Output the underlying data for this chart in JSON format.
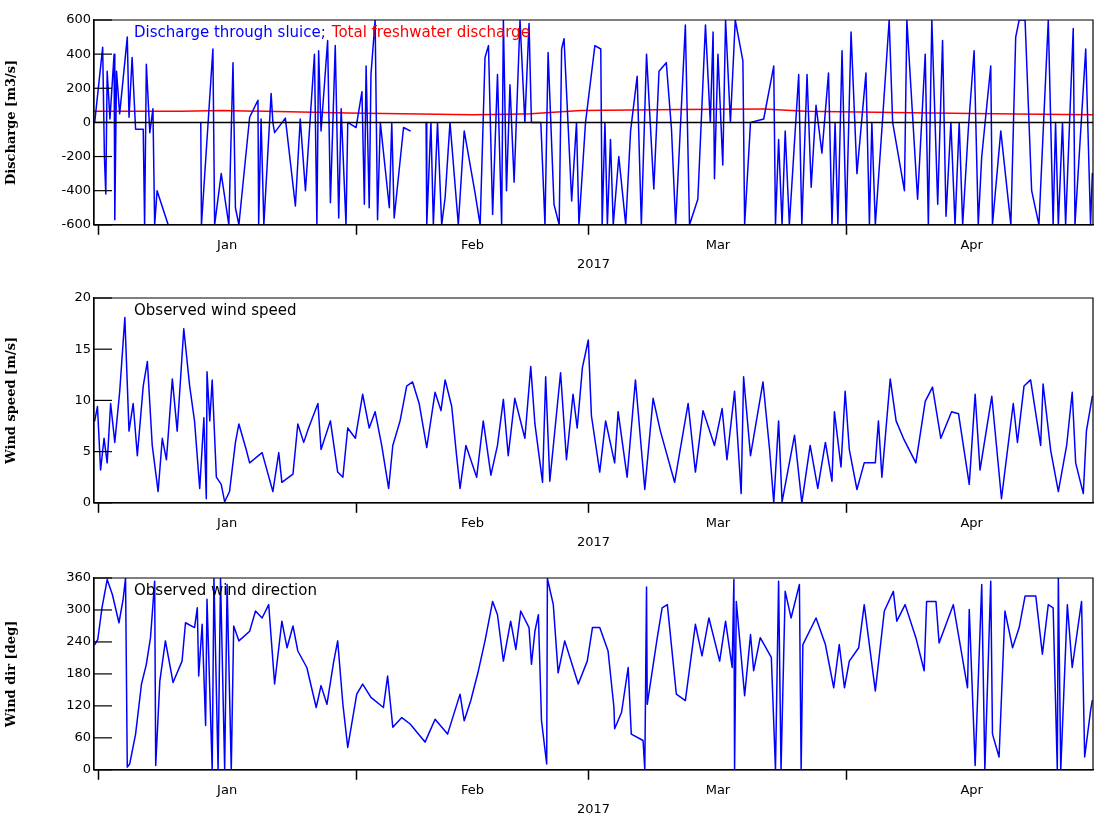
{
  "chart_data": [
    {
      "type": "line",
      "ylabel": "Discharge [m3/s]",
      "xlabel": "2017",
      "legend": "top left",
      "marker": "none",
      "xlim": [
        "2016-12-31T12:00",
        "2017-04-30T14:00"
      ],
      "xticks": [
        {
          "value": "2017-01-01",
          "label": null
        },
        {
          "value": "2017-01-16T12:00",
          "label": "Jan"
        },
        {
          "value": "2017-02-01",
          "label": null
        },
        {
          "value": "2017-02-15",
          "label": "Feb"
        },
        {
          "value": "2017-03-01",
          "label": null
        },
        {
          "value": "2017-03-16T12:00",
          "label": "Mar"
        },
        {
          "value": "2017-04-01",
          "label": null
        },
        {
          "value": "2017-04-16",
          "label": "Apr"
        }
      ],
      "ylim": [
        -600,
        600
      ],
      "yticks": [
        -600,
        -400,
        -200,
        0,
        200,
        400,
        600
      ],
      "ref_lines": [
        {
          "axis": "y",
          "value": 0,
          "color": "#000000"
        }
      ],
      "series": [
        {
          "name": "Discharge through sluice;",
          "color": "#0000ff",
          "x": [
            "2016-12-31T14:00",
            "2017-01-01T13:00",
            "2017-01-01T18:00",
            "2017-01-01T22:00",
            "2017-01-02T02:00",
            "2017-01-02T10:00",
            "2017-01-02T22:00",
            "2017-01-03T00:00",
            "2017-01-03T05:00",
            "2017-01-03T14:00",
            "2017-01-04T12:00",
            "2017-01-04T17:00",
            "2017-01-05T02:00",
            "2017-01-05T12:00",
            "2017-01-06T10:00",
            "2017-01-06T14:00",
            "2017-01-06T19:00",
            "2017-01-07T05:00",
            "2017-01-07T14:00",
            "2017-01-07T19:00",
            "2017-01-08T02:00",
            "2017-01-09T10:00",
            "2017-01-10T12:00",
            "2017-01-13T08:00",
            "2017-01-13T10:00",
            "2017-01-14T19:00",
            "2017-01-15T00:00",
            "2017-01-15T19:00",
            "2017-01-16T17:00",
            "2017-01-17T05:00",
            "2017-01-17T12:00",
            "2017-01-17T22:00",
            "2017-01-19T05:00",
            "2017-01-20T05:00",
            "2017-01-20T07:00",
            "2017-01-20T14:00",
            "2017-01-20T22:00",
            "2017-01-21T19:00",
            "2017-01-22T00:00",
            "2017-01-22T05:00",
            "2017-01-23T12:00",
            "2017-01-24T17:00",
            "2017-01-25T07:00",
            "2017-01-25T22:00",
            "2017-01-26T12:00",
            "2017-01-27T00:00",
            "2017-01-27T07:00",
            "2017-01-27T12:00",
            "2017-01-27T19:00",
            "2017-01-28T14:00",
            "2017-01-28T22:00",
            "2017-01-29T12:00",
            "2017-01-29T22:00",
            "2017-01-30T05:00",
            "2017-01-30T19:00",
            "2017-01-31T00:00",
            "2017-02-01T00:00",
            "2017-02-01T17:00",
            "2017-02-02T00:00",
            "2017-02-02T05:00",
            "2017-02-02T14:00",
            "2017-02-02T19:00",
            "2017-02-03T07:00",
            "2017-02-03T14:00",
            "2017-02-03T22:00",
            "2017-02-05T00:00",
            "2017-02-05T07:00",
            "2017-02-05T14:00",
            "2017-02-06T17:00",
            "2017-02-07T12:00",
            "2017-02-08T12:00",
            "2017-02-09T10:00",
            "2017-02-09T12:00",
            "2017-02-10T00:00",
            "2017-02-10T07:00",
            "2017-02-10T19:00",
            "2017-02-11T07:00",
            "2017-02-11T17:00",
            "2017-02-12T07:00",
            "2017-02-13T07:00",
            "2017-02-14T00:00",
            "2017-02-15T07:00",
            "2017-02-15T22:00",
            "2017-02-16T12:00",
            "2017-02-16T22:00",
            "2017-02-17T10:00",
            "2017-02-18T00:00",
            "2017-02-18T12:00",
            "2017-02-18T17:00",
            "2017-02-19T02:00",
            "2017-02-19T12:00",
            "2017-02-20T00:00",
            "2017-02-20T17:00",
            "2017-02-21T07:00",
            "2017-02-21T19:00",
            "2017-02-22T02:00",
            "2017-02-23T05:00",
            "2017-02-23T17:00",
            "2017-02-24T02:00",
            "2017-02-24T19:00",
            "2017-02-25T10:00",
            "2017-02-25T17:00",
            "2017-02-26T00:00",
            "2017-02-26T22:00",
            "2017-02-27T12:00",
            "2017-02-27T19:00",
            "2017-02-28T14:00",
            "2017-03-01T17:00",
            "2017-03-02T10:00",
            "2017-03-02T14:00",
            "2017-03-02T22:00",
            "2017-03-03T05:00",
            "2017-03-03T14:00",
            "2017-03-03T22:00",
            "2017-03-04T14:00",
            "2017-03-05T10:00",
            "2017-03-06T00:00",
            "2017-03-06T19:00",
            "2017-03-07T07:00",
            "2017-03-07T22:00",
            "2017-03-08T19:00",
            "2017-03-09T10:00",
            "2017-03-10T07:00",
            "2017-03-10T22:00",
            "2017-03-11T10:00",
            "2017-03-12T14:00",
            "2017-03-13T02:00",
            "2017-03-14T02:00",
            "2017-03-15T00:00",
            "2017-03-15T14:00",
            "2017-03-15T22:00",
            "2017-03-16T02:00",
            "2017-03-16T12:00",
            "2017-03-17T02:00",
            "2017-03-17T10:00",
            "2017-03-18T00:00",
            "2017-03-18T14:00",
            "2017-03-19T12:00",
            "2017-03-19T17:00",
            "2017-03-20T10:00",
            "2017-03-22T00:00",
            "2017-03-23T05:00",
            "2017-03-23T10:00",
            "2017-03-23T19:00",
            "2017-03-24T05:00",
            "2017-03-24T14:00",
            "2017-03-25T02:00",
            "2017-03-26T05:00",
            "2017-03-26T14:00",
            "2017-03-27T05:00",
            "2017-03-27T17:00",
            "2017-03-28T07:00",
            "2017-03-29T00:00",
            "2017-03-29T19:00",
            "2017-03-30T05:00",
            "2017-03-30T14:00",
            "2017-03-30T22:00",
            "2017-03-31T10:00",
            "2017-03-31T22:00",
            "2017-04-01T12:00",
            "2017-04-02T05:00",
            "2017-04-03T07:00",
            "2017-04-03T17:00",
            "2017-04-04T00:00",
            "2017-04-04T10:00",
            "2017-04-05T07:00",
            "2017-04-06T02:00",
            "2017-04-06T12:00",
            "2017-04-07T22:00",
            "2017-04-08T05:00",
            "2017-04-09T12:00",
            "2017-04-10T10:00",
            "2017-04-10T19:00",
            "2017-04-11T05:00",
            "2017-04-11T22:00",
            "2017-04-12T12:00",
            "2017-04-12T22:00",
            "2017-04-13T12:00",
            "2017-04-14T00:00",
            "2017-04-14T12:00",
            "2017-04-14T22:00",
            "2017-04-15T14:00",
            "2017-04-16T07:00",
            "2017-04-16T19:00",
            "2017-04-17T05:00",
            "2017-04-18T07:00",
            "2017-04-18T12:00",
            "2017-04-19T12:00",
            "2017-04-20T17:00",
            "2017-04-21T07:00",
            "2017-04-21T17:00",
            "2017-04-22T10:00",
            "2017-04-23T05:00",
            "2017-04-24T02:00",
            "2017-04-25T05:00",
            "2017-04-25T19:00",
            "2017-04-26T02:00",
            "2017-04-26T10:00",
            "2017-04-26T22:00",
            "2017-04-27T07:00",
            "2017-04-28T05:00",
            "2017-04-28T10:00",
            "2017-04-29T17:00",
            "2017-04-30T07:00",
            "2017-04-30T12:00"
          ],
          "values": [
            0,
            440,
            -200,
            -420,
            300,
            20,
            400,
            -570,
            300,
            50,
            500,
            30,
            380,
            -40,
            -40,
            -600,
            340,
            -60,
            80,
            -600,
            -400,
            -600,
            null,
            0,
            -600,
            430,
            -600,
            -300,
            -600,
            350,
            -500,
            -600,
            30,
            130,
            -600,
            20,
            -600,
            170,
            0,
            -60,
            25,
            -490,
            20,
            -400,
            30,
            400,
            -600,
            420,
            -50,
            480,
            -470,
            450,
            -560,
            80,
            -600,
            0,
            -30,
            180,
            -480,
            330,
            -500,
            280,
            600,
            -570,
            0,
            -500,
            0,
            -560,
            -30,
            -50,
            null,
            0,
            -600,
            0,
            -600,
            0,
            -600,
            -440,
            0,
            -600,
            -50,
            -410,
            -600,
            380,
            450,
            -540,
            280,
            -600,
            600,
            -400,
            220,
            -350,
            600,
            0,
            580,
            0,
            0,
            -600,
            410,
            -480,
            -600,
            430,
            490,
            -460,
            0,
            -600,
            0,
            450,
            430,
            -600,
            0,
            -600,
            -100,
            -600,
            -200,
            -600,
            -50,
            270,
            -600,
            400,
            -390,
            300,
            350,
            -40,
            -600,
            570,
            -600,
            -450,
            570,
            0,
            530,
            -330,
            400,
            -250,
            600,
            0,
            600,
            360,
            -600,
            0,
            20,
            330,
            -600,
            -100,
            -600,
            -50,
            -600,
            280,
            -600,
            280,
            -380,
            100,
            -180,
            290,
            -600,
            0,
            -600,
            420,
            -600,
            530,
            -300,
            290,
            -600,
            0,
            -600,
            20,
            600,
            0,
            -400,
            600,
            -450,
            400,
            -600,
            600,
            -480,
            480,
            -550,
            0,
            -600,
            0,
            -600,
            -50,
            420,
            -600,
            -200,
            330,
            -600,
            -50,
            -600,
            500,
            600,
            600,
            -400,
            -600,
            600,
            -600,
            0,
            -600,
            0,
            -600,
            550,
            -600,
            430,
            -600,
            -300
          ]
        },
        {
          "name": "Total freshwater discharge",
          "color": "#ff0000",
          "x": [
            "2016-12-31T14:00",
            "2017-01-11T00:00",
            "2017-01-16T00:00",
            "2017-01-31T00:00",
            "2017-02-15T00:00",
            "2017-02-22T00:00",
            "2017-02-28T00:00",
            "2017-03-12T00:00",
            "2017-03-22T00:00",
            "2017-03-27T00:00",
            "2017-04-11T00:00",
            "2017-04-30T12:00"
          ],
          "values": [
            65,
            65,
            70,
            55,
            45,
            50,
            70,
            75,
            78,
            65,
            55,
            45
          ]
        }
      ]
    },
    {
      "type": "line",
      "ylabel": "Wind speed [m/s]",
      "xlabel": "2017",
      "marker": "none",
      "annotations": [
        "Observed wind speed"
      ],
      "xlim": [
        "2016-12-31T12:00",
        "2017-04-30T14:00"
      ],
      "xticks": [
        {
          "value": "2017-01-01",
          "label": null
        },
        {
          "value": "2017-01-16T12:00",
          "label": "Jan"
        },
        {
          "value": "2017-02-01",
          "label": null
        },
        {
          "value": "2017-02-15",
          "label": "Feb"
        },
        {
          "value": "2017-03-01",
          "label": null
        },
        {
          "value": "2017-03-16T12:00",
          "label": "Mar"
        },
        {
          "value": "2017-04-01",
          "label": null
        },
        {
          "value": "2017-04-16",
          "label": "Apr"
        }
      ],
      "ylim": [
        0,
        20
      ],
      "yticks": [
        0,
        5,
        10,
        15,
        20
      ],
      "series": [
        {
          "color": "#0000ff",
          "x": [
            "2016-12-31T14:00",
            "2016-12-31T22:00",
            "2017-01-01T07:00",
            "2017-01-01T17:00",
            "2017-01-02T02:00",
            "2017-01-02T12:00",
            "2017-01-03T00:00",
            "2017-01-03T14:00",
            "2017-01-04T05:00",
            "2017-01-04T17:00",
            "2017-01-05T05:00",
            "2017-01-05T17:00",
            "2017-01-06T10:00",
            "2017-01-06T22:00",
            "2017-01-07T12:00",
            "2017-01-08T05:00",
            "2017-01-08T17:00",
            "2017-01-09T05:00",
            "2017-01-09T22:00",
            "2017-01-10T12:00",
            "2017-01-11T07:00",
            "2017-01-12T00:00",
            "2017-01-12T14:00",
            "2017-01-13T05:00",
            "2017-01-13T17:00",
            "2017-01-14T00:00",
            "2017-01-14T02:00",
            "2017-01-14T10:00",
            "2017-01-14T17:00",
            "2017-01-15T05:00",
            "2017-01-15T19:00",
            "2017-01-16T05:00",
            "2017-01-16T19:00",
            "2017-01-17T12:00",
            "2017-01-17T22:00",
            "2017-01-18T19:00",
            "2017-01-19T05:00",
            "2017-01-20T17:00",
            "2017-01-22T00:00",
            "2017-01-22T17:00",
            "2017-01-23T02:00",
            "2017-01-24T10:00",
            "2017-01-25T00:00",
            "2017-01-25T17:00",
            "2017-01-26T07:00",
            "2017-01-27T10:00",
            "2017-01-27T19:00",
            "2017-01-28T22:00",
            "2017-01-29T19:00",
            "2017-01-30T10:00",
            "2017-01-31T00:00",
            "2017-01-31T22:00",
            "2017-02-01T19:00",
            "2017-02-02T14:00",
            "2017-02-03T07:00",
            "2017-02-04T02:00",
            "2017-02-04T22:00",
            "2017-02-05T10:00",
            "2017-02-06T07:00",
            "2017-02-07T02:00",
            "2017-02-07T19:00",
            "2017-02-08T14:00",
            "2017-02-09T12:00",
            "2017-02-10T12:00",
            "2017-02-11T05:00",
            "2017-02-11T17:00",
            "2017-02-12T12:00",
            "2017-02-13T02:00",
            "2017-02-13T12:00",
            "2017-02-14T05:00",
            "2017-02-15T12:00",
            "2017-02-16T07:00",
            "2017-02-17T05:00",
            "2017-02-18T00:00",
            "2017-02-18T17:00",
            "2017-02-19T07:00",
            "2017-02-20T02:00",
            "2017-02-21T07:00",
            "2017-02-22T00:00",
            "2017-02-22T12:00",
            "2017-02-23T10:00",
            "2017-02-23T19:00",
            "2017-02-24T07:00",
            "2017-02-25T14:00",
            "2017-02-26T07:00",
            "2017-02-27T02:00",
            "2017-02-27T14:00",
            "2017-02-28T05:00",
            "2017-02-28T22:00",
            "2017-03-01T07:00",
            "2017-03-02T07:00",
            "2017-03-03T00:00",
            "2017-03-04T02:00",
            "2017-03-04T12:00",
            "2017-03-05T14:00",
            "2017-03-06T14:00",
            "2017-03-07T17:00",
            "2017-03-08T17:00",
            "2017-03-09T14:00",
            "2017-03-11T07:00",
            "2017-03-12T22:00",
            "2017-03-13T19:00",
            "2017-03-14T17:00",
            "2017-03-16T02:00",
            "2017-03-17T00:00",
            "2017-03-17T14:00",
            "2017-03-18T12:00",
            "2017-03-19T07:00",
            "2017-03-19T14:00",
            "2017-03-20T10:00",
            "2017-03-21T22:00",
            "2017-03-22T17:00",
            "2017-03-23T05:00",
            "2017-03-23T19:00",
            "2017-03-24T05:00",
            "2017-03-25T17:00",
            "2017-03-26T14:00",
            "2017-03-27T14:00",
            "2017-03-28T12:00",
            "2017-03-29T10:00",
            "2017-03-30T05:00",
            "2017-03-30T12:00",
            "2017-03-31T07:00",
            "2017-03-31T19:00",
            "2017-04-01T07:00",
            "2017-04-02T05:00",
            "2017-04-03T02:00",
            "2017-04-04T10:00",
            "2017-04-04T19:00",
            "2017-04-05T05:00",
            "2017-04-06T05:00",
            "2017-04-06T22:00",
            "2017-04-07T19:00",
            "2017-04-09T07:00",
            "2017-04-10T10:00",
            "2017-04-11T07:00",
            "2017-04-12T07:00",
            "2017-04-13T14:00",
            "2017-04-14T10:00",
            "2017-04-15T17:00",
            "2017-04-16T10:00",
            "2017-04-17T00:00",
            "2017-04-18T10:00",
            "2017-04-19T14:00",
            "2017-04-21T00:00",
            "2017-04-21T12:00",
            "2017-04-22T07:00",
            "2017-04-23T02:00",
            "2017-04-24T07:00",
            "2017-04-24T14:00",
            "2017-04-25T12:00",
            "2017-04-26T10:00",
            "2017-04-27T10:00",
            "2017-04-28T02:00",
            "2017-04-28T12:00",
            "2017-04-29T10:00",
            "2017-04-29T19:00",
            "2017-04-30T12:00"
          ],
          "values": [
            8.0,
            9.4,
            3.2,
            6.3,
            3.9,
            9.7,
            5.9,
            10.8,
            18.1,
            7.0,
            9.7,
            4.6,
            11.4,
            13.8,
            5.6,
            1.1,
            6.3,
            4.2,
            12.1,
            7.0,
            17.0,
            11.4,
            8.0,
            1.4,
            8.3,
            0.4,
            12.8,
            8.0,
            12.0,
            2.5,
            1.8,
            0.1,
            1.1,
            5.9,
            7.7,
            5.2,
            3.9,
            4.9,
            1.1,
            4.9,
            2.0,
            2.8,
            7.7,
            5.9,
            7.3,
            9.7,
            5.2,
            8.0,
            3.0,
            2.5,
            7.3,
            6.3,
            10.6,
            7.3,
            8.9,
            5.6,
            1.4,
            5.6,
            8.0,
            11.4,
            11.8,
            9.7,
            5.4,
            10.8,
            9.0,
            12.0,
            9.4,
            4.6,
            1.4,
            5.6,
            2.5,
            8.0,
            2.7,
            5.6,
            10.1,
            4.6,
            10.2,
            6.3,
            13.3,
            7.7,
            2.0,
            12.3,
            2.1,
            12.7,
            4.2,
            10.6,
            7.3,
            13.2,
            15.9,
            8.5,
            3.0,
            8.0,
            3.9,
            8.9,
            2.5,
            12.0,
            1.3,
            10.2,
            7.0,
            2.0,
            9.7,
            3.0,
            9.0,
            5.6,
            9.2,
            4.2,
            10.9,
            0.9,
            12.3,
            4.6,
            11.8,
            5.2,
            0,
            8.0,
            0.1,
            6.6,
            0,
            5.6,
            1.4,
            5.9,
            2.1,
            8.9,
            3.5,
            10.9,
            5.2,
            1.3,
            3.9,
            3.9,
            8.0,
            2.5,
            12.1,
            8.0,
            6.3,
            3.9,
            9.9,
            11.3,
            6.3,
            8.9,
            8.7,
            1.8,
            10.6,
            3.2,
            10.4,
            0.4,
            9.7,
            5.9,
            11.4,
            12.0,
            5.6,
            11.6,
            5.1,
            1.1,
            5.6,
            10.8,
            3.9,
            0.9,
            7.0,
            10.4
          ]
        }
      ]
    },
    {
      "type": "line",
      "ylabel": "Wind dir [deg]",
      "xlabel": "2017",
      "marker": "none",
      "annotations": [
        "Observed wind direction"
      ],
      "xlim": [
        "2016-12-31T12:00",
        "2017-04-30T14:00"
      ],
      "xticks": [
        {
          "value": "2017-01-01",
          "label": null
        },
        {
          "value": "2017-01-16T12:00",
          "label": "Jan"
        },
        {
          "value": "2017-02-01",
          "label": null
        },
        {
          "value": "2017-02-15",
          "label": "Feb"
        },
        {
          "value": "2017-03-01",
          "label": null
        },
        {
          "value": "2017-03-16T12:00",
          "label": "Mar"
        },
        {
          "value": "2017-04-01",
          "label": null
        },
        {
          "value": "2017-04-16",
          "label": "Apr"
        }
      ],
      "ylim": [
        0,
        360
      ],
      "yticks": [
        0,
        60,
        120,
        180,
        240,
        300,
        360
      ],
      "series": [
        {
          "color": "#0000ff",
          "x": [
            "2016-12-31T14:00",
            "2016-12-31T23:00",
            "2017-01-01T11:00",
            "2017-01-02T02:00",
            "2017-01-02T17:00",
            "2017-01-03T12:00",
            "2017-01-04T00:00",
            "2017-01-04T07:00",
            "2017-01-04T12:00",
            "2017-01-04T19:00",
            "2017-01-05T12:00",
            "2017-01-06T05:00",
            "2017-01-06T19:00",
            "2017-01-07T07:00",
            "2017-01-07T19:00",
            "2017-01-07T22:00",
            "2017-01-08T10:00",
            "2017-01-09T02:00",
            "2017-01-10T00:00",
            "2017-01-11T02:00",
            "2017-01-11T12:00",
            "2017-01-12T14:00",
            "2017-01-12T22:00",
            "2017-01-13T02:00",
            "2017-01-13T12:00",
            "2017-01-13T22:00",
            "2017-01-14T02:00",
            "2017-01-14T17:00",
            "2017-01-14T22:00",
            "2017-01-15T10:00",
            "2017-01-15T17:00",
            "2017-01-16T05:00",
            "2017-01-16T12:00",
            "2017-01-17T00:00",
            "2017-01-17T07:00",
            "2017-01-17T22:00",
            "2017-01-19T05:00",
            "2017-01-19T22:00",
            "2017-01-20T17:00",
            "2017-01-21T12:00",
            "2017-01-22T05:00",
            "2017-01-23T02:00",
            "2017-01-23T17:00",
            "2017-01-24T10:00",
            "2017-01-25T00:00",
            "2017-01-26T02:00",
            "2017-01-27T05:00",
            "2017-01-27T19:00",
            "2017-01-28T12:00",
            "2017-01-29T07:00",
            "2017-01-29T19:00",
            "2017-01-30T10:00",
            "2017-01-31T00:00",
            "2017-02-01T02:00",
            "2017-02-01T19:00",
            "2017-02-02T19:00",
            "2017-02-04T07:00",
            "2017-02-04T19:00",
            "2017-02-05T10:00",
            "2017-02-06T12:00",
            "2017-02-07T12:00",
            "2017-02-09T07:00",
            "2017-02-10T12:00",
            "2017-02-12T00:00",
            "2017-02-13T12:00",
            "2017-02-14T00:00",
            "2017-02-14T19:00",
            "2017-02-15T17:00",
            "2017-02-16T12:00",
            "2017-02-17T10:00",
            "2017-02-18T00:00",
            "2017-02-18T17:00",
            "2017-02-19T14:00",
            "2017-02-20T05:00",
            "2017-02-20T19:00",
            "2017-02-21T19:00",
            "2017-02-22T02:00",
            "2017-02-22T12:00",
            "2017-02-22T22:00",
            "2017-02-23T07:00",
            "2017-02-23T22:00",
            "2017-02-24T00:00",
            "2017-02-24T17:00",
            "2017-02-25T07:00",
            "2017-02-26T02:00",
            "2017-02-27T17:00",
            "2017-02-28T19:00",
            "2017-03-01T10:00",
            "2017-03-02T07:00",
            "2017-03-03T07:00",
            "2017-03-04T00:00",
            "2017-03-04T02:00",
            "2017-03-04T22:00",
            "2017-03-05T17:00",
            "2017-03-06T02:00",
            "2017-03-07T12:00",
            "2017-03-07T17:00",
            "2017-03-07T22:00",
            "2017-03-08T00:00",
            "2017-03-09T05:00",
            "2017-03-09T19:00",
            "2017-03-10T10:00",
            "2017-03-11T12:00",
            "2017-03-12T14:00",
            "2017-03-13T19:00",
            "2017-03-14T14:00",
            "2017-03-15T10:00",
            "2017-03-16T17:00",
            "2017-03-17T10:00",
            "2017-03-18T05:00",
            "2017-03-18T10:00",
            "2017-03-18T12:00",
            "2017-03-18T17:00",
            "2017-03-19T17:00",
            "2017-03-20T10:00",
            "2017-03-20T19:00",
            "2017-03-21T14:00",
            "2017-03-22T22:00",
            "2017-03-23T10:00",
            "2017-03-23T19:00",
            "2017-03-24T02:00",
            "2017-03-24T14:00",
            "2017-03-25T07:00",
            "2017-03-26T07:00",
            "2017-03-26T12:00",
            "2017-03-26T17:00",
            "2017-03-28T07:00",
            "2017-03-29T10:00",
            "2017-03-30T10:00",
            "2017-03-31T02:00",
            "2017-03-31T17:00",
            "2017-04-01T07:00",
            "2017-04-02T10:00",
            "2017-04-03T02:00",
            "2017-04-04T10:00",
            "2017-04-05T12:00",
            "2017-04-06T14:00",
            "2017-04-07T00:00",
            "2017-04-08T00:00",
            "2017-04-09T07:00",
            "2017-04-10T07:00",
            "2017-04-10T14:00",
            "2017-04-11T17:00",
            "2017-04-12T02:00",
            "2017-04-13T19:00",
            "2017-04-15T12:00",
            "2017-04-15T17:00",
            "2017-04-16T10:00",
            "2017-04-17T05:00",
            "2017-04-17T14:00",
            "2017-04-18T07:00",
            "2017-04-18T12:00",
            "2017-04-19T07:00",
            "2017-04-20T00:00",
            "2017-04-20T22:00",
            "2017-04-21T17:00",
            "2017-04-22T10:00",
            "2017-04-23T17:00",
            "2017-04-24T12:00",
            "2017-04-25T05:00",
            "2017-04-25T19:00",
            "2017-04-26T07:00",
            "2017-04-26T10:00",
            "2017-04-26T17:00",
            "2017-04-27T12:00",
            "2017-04-28T02:00",
            "2017-04-29T05:00",
            "2017-04-29T14:00",
            "2017-04-30T07:00",
            "2017-04-30T12:00"
          ],
          "values": [
            235,
            245,
            304,
            357,
            329,
            276,
            320,
            360,
            5,
            11,
            67,
            161,
            198,
            248,
            354,
            8,
            167,
            242,
            164,
            204,
            276,
            267,
            304,
            176,
            273,
            83,
            320,
            0,
            360,
            0,
            360,
            0,
            348,
            0,
            270,
            242,
            260,
            298,
            285,
            310,
            161,
            279,
            229,
            270,
            223,
            192,
            117,
            158,
            123,
            201,
            242,
            123,
            42,
            142,
            161,
            136,
            117,
            176,
            80,
            98,
            86,
            52,
            95,
            67,
            142,
            92,
            130,
            186,
            242,
            316,
            291,
            204,
            279,
            226,
            298,
            267,
            198,
            260,
            291,
            92,
            11,
            359,
            310,
            182,
            242,
            161,
            204,
            267,
            267,
            223,
            117,
            77,
            108,
            192,
            67,
            55,
            0,
            343,
            123,
            248,
            304,
            310,
            142,
            130,
            273,
            214,
            285,
            204,
            279,
            192,
            357,
            0,
            316,
            139,
            254,
            186,
            248,
            211,
            0,
            354,
            0,
            335,
            285,
            348,
            0,
            235,
            285,
            235,
            154,
            235,
            154,
            204,
            229,
            310,
            148,
            298,
            335,
            279,
            310,
            248,
            186,
            316,
            316,
            238,
            310,
            154,
            301,
            8,
            348,
            0,
            354,
            67,
            24,
            298,
            229,
            267,
            326,
            326,
            217,
            310,
            304,
            0,
            359,
            0,
            310,
            192,
            316,
            24,
            111,
            130
          ]
        }
      ]
    }
  ]
}
